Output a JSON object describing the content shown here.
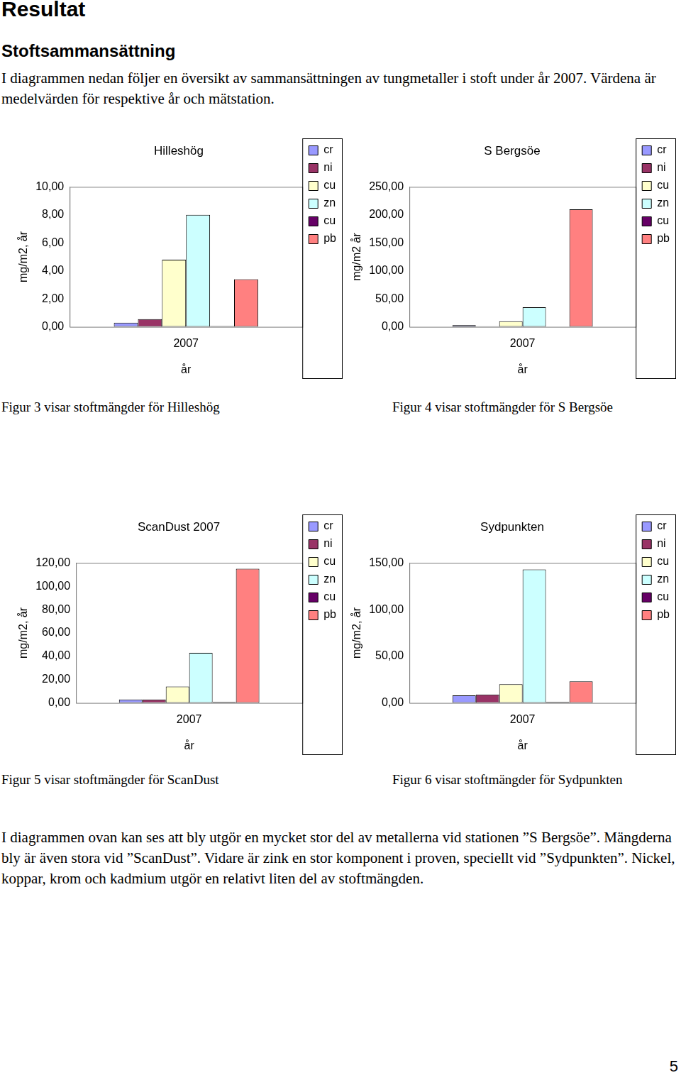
{
  "heading": "Resultat",
  "subheading": "Stoftsammansättning",
  "intro": "I diagrammen nedan följer en översikt av sammansättningen av tungmetaller i stoft under år 2007. Värdena är medelvärden för respektive år och mätstation.",
  "chart_data": [
    {
      "type": "bar",
      "title": "Hilleshög",
      "categories": [
        "2007"
      ],
      "xlabel": "år",
      "ylabel": "mg/m2, år",
      "series": [
        {
          "name": "cr",
          "color": "#9999FF",
          "values": [
            0.3
          ]
        },
        {
          "name": "ni",
          "color": "#993366",
          "values": [
            0.55
          ]
        },
        {
          "name": "cu",
          "color": "#FFFFCC",
          "values": [
            4.8
          ]
        },
        {
          "name": "zn",
          "color": "#CCFFFF",
          "values": [
            8.0
          ]
        },
        {
          "name": "cu",
          "color": "#660066",
          "values": [
            0.05
          ]
        },
        {
          "name": "pb",
          "color": "#FF8080",
          "values": [
            3.4
          ]
        }
      ],
      "ylim": [
        0,
        10
      ],
      "yticks": [
        {
          "value": 0,
          "label": "0,00"
        },
        {
          "value": 2,
          "label": "2,00"
        },
        {
          "value": 4,
          "label": "4,00"
        },
        {
          "value": 6,
          "label": "6,00"
        },
        {
          "value": 8,
          "label": "8,00"
        },
        {
          "value": 10,
          "label": "10,00"
        }
      ],
      "grid": false,
      "legend": "right"
    },
    {
      "type": "bar",
      "title": "S Bergsöe",
      "categories": [
        "2007"
      ],
      "xlabel": "år",
      "ylabel": "mg/m2 år",
      "series": [
        {
          "name": "cr",
          "color": "#9999FF",
          "values": [
            3
          ]
        },
        {
          "name": "ni",
          "color": "#993366",
          "values": [
            1
          ]
        },
        {
          "name": "cu",
          "color": "#FFFFCC",
          "values": [
            10
          ]
        },
        {
          "name": "zn",
          "color": "#CCFFFF",
          "values": [
            35
          ]
        },
        {
          "name": "cu",
          "color": "#660066",
          "values": [
            0.5
          ]
        },
        {
          "name": "pb",
          "color": "#FF8080",
          "values": [
            210
          ]
        }
      ],
      "ylim": [
        0,
        250
      ],
      "yticks": [
        {
          "value": 0,
          "label": "0,00"
        },
        {
          "value": 50,
          "label": "50,00"
        },
        {
          "value": 100,
          "label": "100,00"
        },
        {
          "value": 150,
          "label": "150,00"
        },
        {
          "value": 200,
          "label": "200,00"
        },
        {
          "value": 250,
          "label": "250,00"
        }
      ],
      "grid": false,
      "legend": "right"
    },
    {
      "type": "bar",
      "title": "ScanDust 2007",
      "categories": [
        "2007"
      ],
      "xlabel": "år",
      "ylabel": "mg/m2, år",
      "series": [
        {
          "name": "cr",
          "color": "#9999FF",
          "values": [
            3
          ]
        },
        {
          "name": "ni",
          "color": "#993366",
          "values": [
            3
          ]
        },
        {
          "name": "cu",
          "color": "#FFFFCC",
          "values": [
            14
          ]
        },
        {
          "name": "zn",
          "color": "#CCFFFF",
          "values": [
            43
          ]
        },
        {
          "name": "cu",
          "color": "#660066",
          "values": [
            0.8
          ]
        },
        {
          "name": "pb",
          "color": "#FF8080",
          "values": [
            115
          ]
        }
      ],
      "ylim": [
        0,
        120
      ],
      "yticks": [
        {
          "value": 0,
          "label": "0,00"
        },
        {
          "value": 20,
          "label": "20,00"
        },
        {
          "value": 40,
          "label": "40,00"
        },
        {
          "value": 60,
          "label": "60,00"
        },
        {
          "value": 80,
          "label": "80,00"
        },
        {
          "value": 100,
          "label": "100,00"
        },
        {
          "value": 120,
          "label": "120,00"
        }
      ],
      "grid": false,
      "legend": "right"
    },
    {
      "type": "bar",
      "title": "Sydpunkten",
      "categories": [
        "2007"
      ],
      "xlabel": "år",
      "ylabel": "mg/m2, år",
      "series": [
        {
          "name": "cr",
          "color": "#9999FF",
          "values": [
            8
          ]
        },
        {
          "name": "ni",
          "color": "#993366",
          "values": [
            9
          ]
        },
        {
          "name": "cu",
          "color": "#FFFFCC",
          "values": [
            20
          ]
        },
        {
          "name": "zn",
          "color": "#CCFFFF",
          "values": [
            143
          ]
        },
        {
          "name": "cu",
          "color": "#660066",
          "values": [
            1
          ]
        },
        {
          "name": "pb",
          "color": "#FF8080",
          "values": [
            23
          ]
        }
      ],
      "ylim": [
        0,
        150
      ],
      "yticks": [
        {
          "value": 0,
          "label": "0,00"
        },
        {
          "value": 50,
          "label": "50,00"
        },
        {
          "value": 100,
          "label": "100,00"
        },
        {
          "value": 150,
          "label": "150,00"
        }
      ],
      "grid": false,
      "legend": "right"
    }
  ],
  "captions": [
    "Figur 3 visar stoftmängder för Hilleshög",
    "Figur 4 visar stoftmängder för S Bergsöe",
    "Figur 5 visar stoftmängder för ScanDust",
    "Figur 6 visar stoftmängder för Sydpunkten"
  ],
  "paragraph": "I diagrammen ovan kan ses att bly utgör en mycket stor del av metallerna vid stationen ”S Bergsöe”. Mängderna bly är även stora vid ”ScanDust”. Vidare är zink en stor komponent i proven, speciellt vid ”Sydpunkten”. Nickel, koppar, krom och kadmium utgör en relativt liten del av stoftmängden.",
  "page_number": "5"
}
